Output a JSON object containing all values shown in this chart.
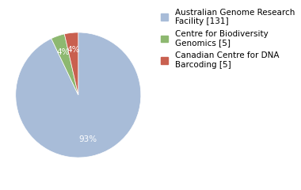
{
  "labels": [
    "Australian Genome Research\nFacility [131]",
    "Centre for Biodiversity\nGenomics [5]",
    "Canadian Centre for DNA\nBarcoding [5]"
  ],
  "values": [
    131,
    5,
    5
  ],
  "colors": [
    "#a8bcd8",
    "#8db870",
    "#c96050"
  ],
  "background_color": "#ffffff",
  "text_color": "#ffffff",
  "legend_fontsize": 7.5,
  "autopct_fontsize": 7.5,
  "startangle": 90
}
